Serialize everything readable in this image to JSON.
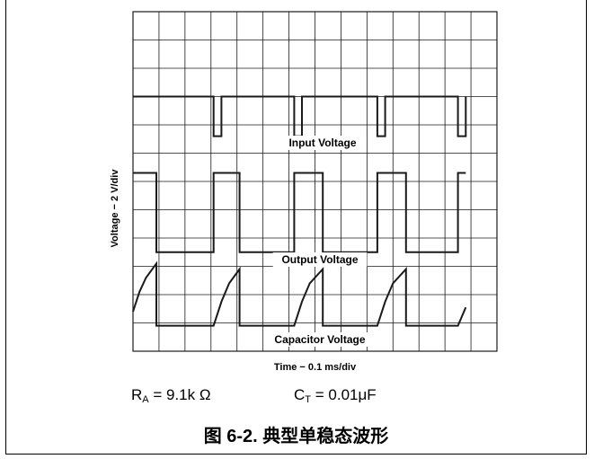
{
  "chart_data": {
    "type": "line",
    "title": "",
    "xlabel": "Time − 0.1 ms/div",
    "ylabel": "Voltage − 2 V/div",
    "grid": true,
    "grid_divisions": {
      "x": 14,
      "y": 12
    },
    "x_unit_per_div": "0.1 ms",
    "y_unit_per_div": "2 V",
    "xlim": [
      0,
      14
    ],
    "ylim": [
      0,
      12
    ],
    "series": [
      {
        "name": "Input Voltage",
        "x": [
          0,
          3.1,
          3.1,
          3.4,
          3.4,
          6.2,
          6.2,
          6.5,
          6.5,
          9.4,
          9.4,
          9.7,
          9.7,
          12.5,
          12.5,
          12.8,
          12.8
        ],
        "y": [
          9,
          9,
          7.6,
          7.6,
          9,
          9,
          7.6,
          7.6,
          9,
          9,
          7.6,
          7.6,
          9,
          9,
          7.6,
          7.6,
          9
        ]
      },
      {
        "name": "Output Voltage",
        "x": [
          0,
          0.9,
          0.9,
          3.1,
          3.1,
          4.1,
          4.1,
          6.2,
          6.2,
          7.3,
          7.3,
          9.4,
          9.4,
          10.5,
          10.5,
          12.5,
          12.5,
          12.8
        ],
        "y": [
          6.3,
          6.3,
          3.5,
          3.5,
          6.3,
          6.3,
          3.5,
          3.5,
          6.3,
          6.3,
          3.5,
          3.5,
          6.3,
          6.3,
          3.5,
          3.5,
          6.3,
          6.3
        ]
      },
      {
        "name": "Capacitor Voltage",
        "x": [
          0,
          0.25,
          0.5,
          0.9,
          0.9,
          3.1,
          3.4,
          3.7,
          4.1,
          4.1,
          6.2,
          6.5,
          6.8,
          7.3,
          7.3,
          9.4,
          9.7,
          10.0,
          10.5,
          10.5,
          12.5,
          12.8
        ],
        "y": [
          1.4,
          2.1,
          2.6,
          3.1,
          0.9,
          0.9,
          1.75,
          2.4,
          2.9,
          0.9,
          0.9,
          1.75,
          2.4,
          2.9,
          0.9,
          0.9,
          1.75,
          2.4,
          2.9,
          0.9,
          0.9,
          1.55
        ]
      }
    ],
    "annotations": [
      "Input Voltage",
      "Output Voltage",
      "Capacitor Voltage"
    ]
  },
  "params": {
    "ra_symbol": "R",
    "ra_sub": "A",
    "ra_value": " = 9.1k Ω",
    "ct_symbol": "C",
    "ct_sub": "T",
    "ct_value": " = 0.01μF"
  },
  "figure_caption": "图 6-2. 典型单稳态波形",
  "colors": {
    "trace": "#1a1a1a",
    "grid": "#1a1a1a",
    "background": "#ffffff"
  }
}
